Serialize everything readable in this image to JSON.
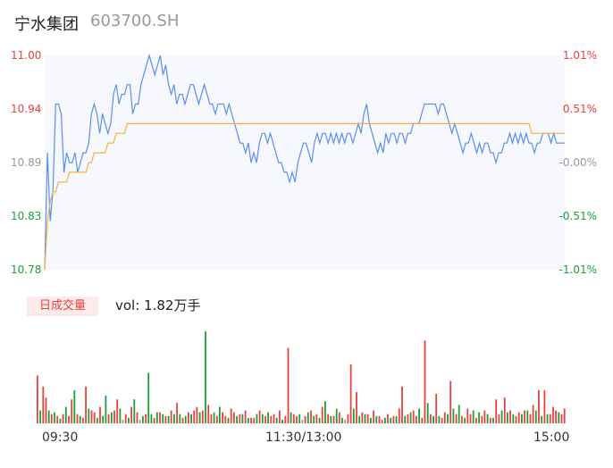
{
  "header": {
    "stock_name": "宁水集团",
    "stock_code": "603700.SH"
  },
  "volume": {
    "badge_label": "日成交量",
    "vol_text": "vol: 1.82万手"
  },
  "colors": {
    "price_line": "#5b8ff0",
    "avg_line": "#f3b23d",
    "up": "#e8413e",
    "down": "#1aa035",
    "flat": "#999999",
    "area": "#f6f8fd"
  },
  "chart_data": [
    {
      "type": "line",
      "title": "",
      "ylim": [
        10.78,
        11.0
      ],
      "y_ticks": [
        {
          "label": "11.00",
          "value": 11.0,
          "color": "#e8413e"
        },
        {
          "label": "10.94",
          "value": 10.945,
          "color": "#e8413e"
        },
        {
          "label": "10.89",
          "value": 10.89,
          "color": "#999999"
        },
        {
          "label": "10.83",
          "value": 10.835,
          "color": "#1aa035"
        },
        {
          "label": "10.78",
          "value": 10.78,
          "color": "#1aa035"
        }
      ],
      "pct_ticks": [
        {
          "label": "1.01%",
          "color": "#e8413e"
        },
        {
          "label": "0.51%",
          "color": "#e8413e"
        },
        {
          "label": "-0.00%",
          "color": "#999999"
        },
        {
          "label": "-0.51%",
          "color": "#1aa035"
        },
        {
          "label": "-1.01%",
          "color": "#1aa035"
        }
      ],
      "x_ticks": [
        "09:30",
        "11:30/13:00",
        "15:00"
      ],
      "series": [
        {
          "values": [
            10.78,
            10.9,
            10.83,
            10.86,
            10.95,
            10.95,
            10.94,
            10.88,
            10.9,
            10.89,
            10.89,
            10.9,
            10.88,
            10.89,
            10.9,
            10.9,
            10.91,
            10.94,
            10.95,
            10.94,
            10.92,
            10.94,
            10.93,
            10.92,
            10.93,
            10.96,
            10.97,
            10.95,
            10.96,
            10.96,
            10.97,
            10.97,
            10.94,
            10.95,
            10.95,
            10.97,
            10.98,
            10.99,
            11.0,
            10.99,
            10.98,
            10.99,
            11.0,
            10.98,
            10.99,
            10.97,
            10.96,
            10.97,
            10.95,
            10.96,
            10.96,
            10.95,
            10.96,
            10.97,
            10.97,
            10.96,
            10.95,
            10.96,
            10.97,
            10.96,
            10.95,
            10.95,
            10.94,
            10.95,
            10.95,
            10.95,
            10.94,
            10.95,
            10.94,
            10.93,
            10.92,
            10.91,
            10.91,
            10.9,
            10.91,
            10.89,
            10.9,
            10.89,
            10.91,
            10.92,
            10.92,
            10.91,
            10.92,
            10.91,
            10.9,
            10.89,
            10.89,
            10.88,
            10.88,
            10.87,
            10.88,
            10.87,
            10.89,
            10.9,
            10.91,
            10.91,
            10.9,
            10.89,
            10.91,
            10.92,
            10.91,
            10.92,
            10.92,
            10.91,
            10.92,
            10.91,
            10.92,
            10.91,
            10.92,
            10.91,
            10.92,
            10.92,
            10.91,
            10.92,
            10.93,
            10.92,
            10.94,
            10.95,
            10.93,
            10.92,
            10.91,
            10.9,
            10.91,
            10.9,
            10.92,
            10.91,
            10.92,
            10.92,
            10.91,
            10.92,
            10.92,
            10.91,
            10.92,
            10.92,
            10.93,
            10.93,
            10.93,
            10.94,
            10.95,
            10.95,
            10.95,
            10.95,
            10.95,
            10.94,
            10.95,
            10.95,
            10.94,
            10.93,
            10.92,
            10.93,
            10.92,
            10.91,
            10.9,
            10.91,
            10.91,
            10.92,
            10.91,
            10.9,
            10.91,
            10.9,
            10.91,
            10.91,
            10.9,
            10.9,
            10.89,
            10.9,
            10.9,
            10.91,
            10.91,
            10.92,
            10.91,
            10.92,
            10.91,
            10.92,
            10.91,
            10.92,
            10.91,
            10.91,
            10.9,
            10.91,
            10.91,
            10.92,
            10.92,
            10.92,
            10.91,
            10.92,
            10.91,
            10.91,
            10.91,
            10.91
          ]
        },
        {
          "values": [
            10.78,
            10.83,
            10.85,
            10.86,
            10.86,
            10.87,
            10.87,
            10.87,
            10.87,
            10.88,
            10.88,
            10.88,
            10.88,
            10.88,
            10.88,
            10.88,
            10.89,
            10.89,
            10.9,
            10.9,
            10.9,
            10.9,
            10.9,
            10.91,
            10.91,
            10.91,
            10.92,
            10.92,
            10.92,
            10.92,
            10.93,
            10.93,
            10.93,
            10.93,
            10.93,
            10.93,
            10.93,
            10.93,
            10.93,
            10.93,
            10.93,
            10.93,
            10.93,
            10.93,
            10.93,
            10.93,
            10.93,
            10.93,
            10.93,
            10.93,
            10.93,
            10.93,
            10.93,
            10.93,
            10.93,
            10.93,
            10.93,
            10.93,
            10.93,
            10.93,
            10.93,
            10.93,
            10.93,
            10.93,
            10.93,
            10.93,
            10.93,
            10.93,
            10.93,
            10.93,
            10.93,
            10.93,
            10.93,
            10.93,
            10.93,
            10.93,
            10.93,
            10.93,
            10.93,
            10.93,
            10.93,
            10.93,
            10.93,
            10.93,
            10.93,
            10.93,
            10.93,
            10.93,
            10.93,
            10.93,
            10.93,
            10.93,
            10.93,
            10.93,
            10.93,
            10.93,
            10.93,
            10.93,
            10.93,
            10.93,
            10.93,
            10.93,
            10.93,
            10.93,
            10.93,
            10.93,
            10.93,
            10.93,
            10.93,
            10.93,
            10.93,
            10.93,
            10.93,
            10.93,
            10.93,
            10.93,
            10.93,
            10.93,
            10.93,
            10.93,
            10.93,
            10.93,
            10.93,
            10.93,
            10.93,
            10.93,
            10.93,
            10.93,
            10.93,
            10.93,
            10.93,
            10.93,
            10.93,
            10.93,
            10.93,
            10.93,
            10.93,
            10.93,
            10.93,
            10.93,
            10.93,
            10.93,
            10.93,
            10.93,
            10.93,
            10.93,
            10.93,
            10.93,
            10.93,
            10.93,
            10.93,
            10.93,
            10.93,
            10.93,
            10.93,
            10.93,
            10.93,
            10.93,
            10.93,
            10.93,
            10.93,
            10.93,
            10.93,
            10.93,
            10.93,
            10.93,
            10.93,
            10.93,
            10.93,
            10.93,
            10.93,
            10.93,
            10.93,
            10.93,
            10.93,
            10.93,
            10.93,
            10.92,
            10.92,
            10.92,
            10.92,
            10.92,
            10.92,
            10.92,
            10.92,
            10.92,
            10.92,
            10.92,
            10.92,
            10.92
          ]
        }
      ]
    },
    {
      "type": "bar",
      "title": "",
      "ylim": [
        0,
        100
      ],
      "values": [
        52,
        14,
        40,
        28,
        14,
        10,
        12,
        8,
        5,
        10,
        18,
        8,
        26,
        36,
        10,
        8,
        6,
        40,
        16,
        14,
        12,
        6,
        18,
        8,
        30,
        10,
        12,
        14,
        26,
        16,
        4,
        10,
        6,
        18,
        26,
        12,
        4,
        8,
        10,
        55,
        10,
        6,
        12,
        12,
        10,
        8,
        8,
        14,
        10,
        22,
        10,
        6,
        8,
        12,
        10,
        14,
        18,
        12,
        14,
        100,
        20,
        10,
        12,
        8,
        18,
        12,
        8,
        6,
        16,
        12,
        8,
        10,
        10,
        14,
        6,
        6,
        6,
        10,
        14,
        10,
        8,
        12,
        8,
        10,
        6,
        14,
        4,
        8,
        82,
        12,
        10,
        8,
        10,
        4,
        8,
        12,
        14,
        8,
        10,
        6,
        18,
        24,
        10,
        8,
        8,
        16,
        12,
        6,
        4,
        10,
        64,
        16,
        34,
        8,
        12,
        10,
        10,
        6,
        14,
        8,
        8,
        4,
        6,
        10,
        6,
        8,
        8,
        16,
        40,
        8,
        10,
        12,
        14,
        8,
        16,
        6,
        90,
        22,
        10,
        8,
        32,
        8,
        6,
        12,
        10,
        46,
        16,
        10,
        20,
        8,
        6,
        16,
        10,
        14,
        6,
        12,
        8,
        14,
        10,
        6,
        6,
        26,
        10,
        14,
        28,
        12,
        14,
        10,
        8,
        12,
        10,
        14,
        14,
        10,
        20,
        14,
        36,
        8,
        36,
        10,
        10,
        18,
        14,
        12,
        10,
        16
      ],
      "colors_pattern": [
        "up",
        "down",
        "up",
        "up",
        "down",
        "up",
        "down",
        "up",
        "down",
        "up",
        "down",
        "up",
        "up",
        "down",
        "up",
        "down",
        "up",
        "up",
        "down",
        "up",
        "up",
        "down",
        "up",
        "down",
        "down",
        "up",
        "down",
        "up",
        "up",
        "down",
        "flat",
        "up",
        "down",
        "up",
        "down",
        "up",
        "flat",
        "down",
        "up",
        "down",
        "down",
        "up",
        "down",
        "up",
        "down",
        "up",
        "down",
        "up",
        "down",
        "up",
        "down",
        "up",
        "down",
        "up",
        "down",
        "up",
        "up",
        "down",
        "up",
        "down",
        "up",
        "up",
        "down",
        "up",
        "down",
        "up",
        "up",
        "down",
        "up",
        "up",
        "down",
        "up",
        "down",
        "up",
        "down",
        "up",
        "up",
        "down",
        "up",
        "down",
        "up",
        "down",
        "up",
        "up",
        "down",
        "up",
        "down",
        "up",
        "up",
        "down",
        "up",
        "up",
        "down",
        "flat",
        "up",
        "down",
        "up",
        "down",
        "up",
        "down",
        "up",
        "down",
        "up",
        "down",
        "up",
        "down",
        "up",
        "down",
        "flat",
        "up",
        "up",
        "down",
        "up",
        "down",
        "up",
        "down",
        "up",
        "down",
        "up",
        "down",
        "up",
        "up",
        "down",
        "up",
        "down",
        "up",
        "down",
        "up",
        "up",
        "down",
        "up",
        "down",
        "up",
        "up",
        "down",
        "up",
        "up",
        "down",
        "up",
        "down",
        "up",
        "down",
        "up",
        "up",
        "down",
        "up",
        "down",
        "up",
        "down",
        "up",
        "down",
        "up",
        "up",
        "down",
        "up",
        "down",
        "up",
        "up",
        "down",
        "up",
        "down",
        "up",
        "up",
        "down",
        "up",
        "down",
        "up",
        "down",
        "up",
        "up",
        "down",
        "up",
        "down",
        "up",
        "up",
        "down",
        "up",
        "down",
        "up",
        "down",
        "up",
        "up"
      ]
    }
  ]
}
